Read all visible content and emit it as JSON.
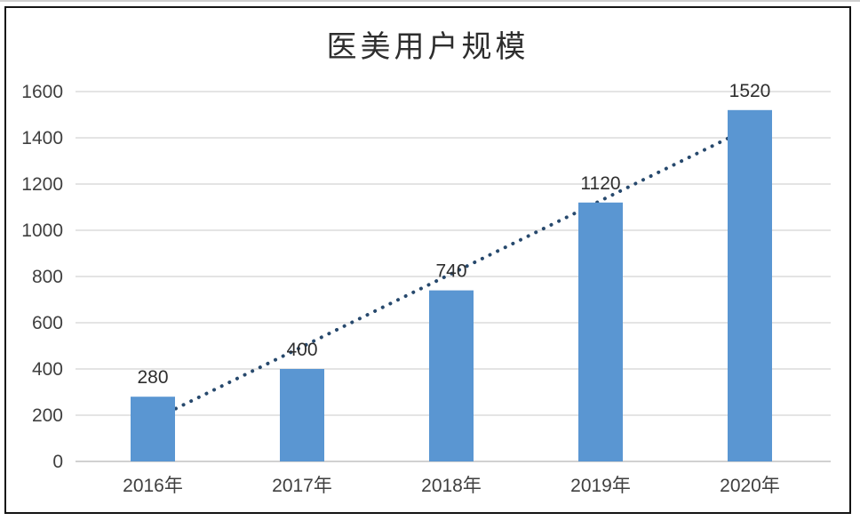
{
  "window": {
    "top_strip_color": "#cfcfcf",
    "frame_border_color": "#141414",
    "background": "#ffffff"
  },
  "chart_data": {
    "type": "bar",
    "title": "医美用户规模",
    "categories": [
      "2016年",
      "2017年",
      "2018年",
      "2019年",
      "2020年"
    ],
    "values": [
      280,
      400,
      740,
      1120,
      1520
    ],
    "data_labels": [
      "280",
      "400",
      "740",
      "1120",
      "1520"
    ],
    "xlabel": "",
    "ylabel": "",
    "ylim": [
      0,
      1600
    ],
    "yticks": [
      0,
      200,
      400,
      600,
      800,
      1000,
      1200,
      1400,
      1600
    ],
    "grid": true,
    "legend_position": "none",
    "bar_color": "#5A96D2",
    "gridline_color": "#C9C9C9",
    "baseline_color": "#A3A3A3",
    "tick_label_color": "#3F3F3F",
    "value_label_color": "#2E2E2E",
    "category_label_color": "#3F3F3F",
    "title_color": "#2E2E2E",
    "trendline": {
      "type": "linear",
      "style": "dotted",
      "color": "#27496D",
      "start_value": 180,
      "end_value": 1444
    }
  }
}
